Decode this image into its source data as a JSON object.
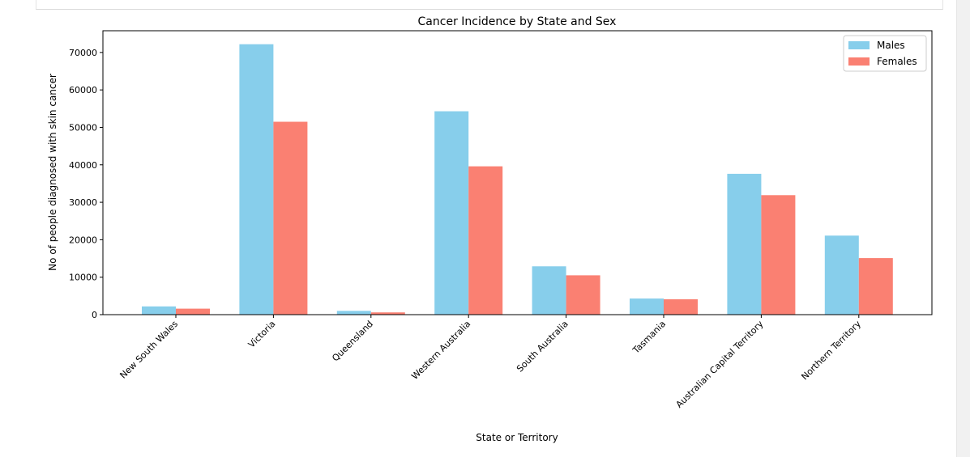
{
  "chart_data": {
    "type": "bar",
    "title": "Cancer Incidence by State and Sex",
    "xlabel": "State or Territory",
    "ylabel": "No of people diagnosed with skin cancer",
    "categories": [
      "New South Wales",
      "Victoria",
      "Queensland",
      "Western Australia",
      "South Australia",
      "Tasmania",
      "Australian Capital Territory",
      "Northern Territory"
    ],
    "series": [
      {
        "name": "Males",
        "color": "#87ceeb",
        "values": [
          2200,
          72200,
          1000,
          54300,
          12900,
          4300,
          37600,
          21100
        ]
      },
      {
        "name": "Females",
        "color": "#fa8072",
        "values": [
          1600,
          51500,
          600,
          39600,
          10500,
          4100,
          31900,
          15100
        ]
      }
    ],
    "ylim": [
      0,
      75800
    ],
    "yticks": [
      0,
      10000,
      20000,
      30000,
      40000,
      50000,
      60000,
      70000
    ],
    "legend": "top-right",
    "grid": false
  }
}
